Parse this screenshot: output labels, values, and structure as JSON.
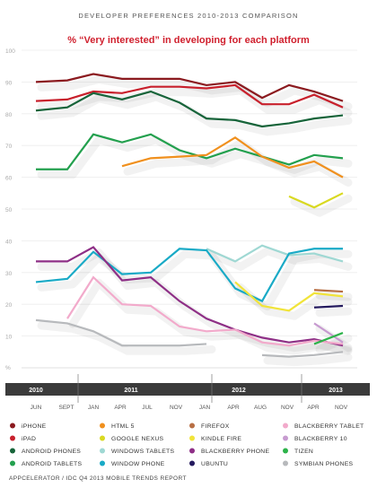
{
  "header": "DEVELOPER PREFERENCES 2010-2013 COMPARISON",
  "subtitle": "% “Very interested” in developing for each platform",
  "footer": "APPCELERATOR / IDC Q4 2013 MOBILE TRENDS REPORT",
  "chart_data": {
    "type": "line",
    "title": "% “Very interested” in developing for each platform",
    "x": [
      "JUN",
      "SEPT",
      "JAN",
      "APR",
      "JUL",
      "NOV",
      "JAN",
      "APR",
      "AUG",
      "NOV",
      "APR",
      "NOV"
    ],
    "years": [
      {
        "label": "2010",
        "from": 0,
        "to": 1
      },
      {
        "label": "2011",
        "from": 2,
        "to": 5
      },
      {
        "label": "2012",
        "from": 6,
        "to": 9
      },
      {
        "label": "2013",
        "from": 10,
        "to": 11
      }
    ],
    "ylim": [
      0,
      100
    ],
    "yticks": [
      10,
      20,
      30,
      40,
      50,
      60,
      70,
      80,
      90,
      100
    ],
    "ytick_suffix": "%",
    "grid": true,
    "series": [
      {
        "name": "iPHONE",
        "color": "#8b1a1f",
        "values": [
          90,
          90.5,
          92.5,
          91,
          91,
          91,
          89,
          90,
          85,
          89,
          87,
          84
        ]
      },
      {
        "name": "iPAD",
        "color": "#c8202c",
        "values": [
          84,
          84.5,
          87,
          86.5,
          88.5,
          88.5,
          88,
          89,
          83,
          83,
          86,
          82
        ]
      },
      {
        "name": "ANDROID PHONES",
        "color": "#17643a",
        "values": [
          81,
          82,
          86.5,
          84.5,
          87,
          83.5,
          78.5,
          78,
          76,
          77,
          78.5,
          79.5
        ]
      },
      {
        "name": "ANDROID TABLETS",
        "color": "#23a04e",
        "values": [
          62.5,
          62.5,
          73.5,
          71,
          73.5,
          68.5,
          66,
          69,
          66.5,
          64,
          67,
          66
        ]
      },
      {
        "name": "HTML 5",
        "color": "#f0901e",
        "values": [
          null,
          null,
          null,
          63.5,
          66,
          66.5,
          67,
          72.5,
          66.5,
          63,
          65,
          60
        ]
      },
      {
        "name": "GOOGLE NEXUS",
        "color": "#d9d921",
        "values": [
          null,
          null,
          null,
          null,
          null,
          null,
          null,
          null,
          null,
          54,
          50.5,
          55
        ]
      },
      {
        "name": "WINDOWS TABLETS",
        "color": "#9fd8d3",
        "values": [
          null,
          null,
          null,
          null,
          null,
          null,
          37.5,
          33.5,
          38.5,
          35.5,
          36,
          33.5
        ]
      },
      {
        "name": "WINDOW PHONE",
        "color": "#19aac6",
        "values": [
          27,
          28,
          36.5,
          29.5,
          30,
          37.5,
          37,
          25,
          21,
          36,
          37.5,
          37.5
        ]
      },
      {
        "name": "FIREFOX",
        "color": "#b86f44",
        "values": [
          null,
          null,
          null,
          null,
          null,
          null,
          null,
          null,
          null,
          null,
          24.5,
          24
        ]
      },
      {
        "name": "KINDLE FIRE",
        "color": "#f1e43a",
        "values": [
          null,
          null,
          null,
          null,
          null,
          null,
          null,
          27,
          19.5,
          18,
          23.5,
          22.5
        ]
      },
      {
        "name": "BLACKBERRY PHONE",
        "color": "#8e2f86",
        "values": [
          33.5,
          33.5,
          38,
          27.5,
          28.5,
          21,
          15.5,
          12,
          9.5,
          8,
          9,
          7
        ]
      },
      {
        "name": "UBUNTU",
        "color": "#241a5e",
        "values": [
          null,
          null,
          null,
          null,
          null,
          null,
          null,
          null,
          null,
          null,
          19,
          19.5
        ]
      },
      {
        "name": "BLACKBERRY TABLET",
        "color": "#f2aacb",
        "values": [
          null,
          15.5,
          28.5,
          20,
          19.5,
          13,
          11.5,
          12,
          8,
          7,
          8.5,
          7.5
        ]
      },
      {
        "name": "BLACKBERRY 10",
        "color": "#c79bd0",
        "values": [
          null,
          null,
          null,
          null,
          null,
          null,
          null,
          null,
          null,
          null,
          14,
          8
        ]
      },
      {
        "name": "TIZEN",
        "color": "#2db34a",
        "values": [
          null,
          null,
          null,
          null,
          null,
          null,
          null,
          null,
          null,
          null,
          7.5,
          11
        ]
      },
      {
        "name": "SYMBIAN PHONES",
        "color": "#b7b9bc",
        "values": [
          15,
          14,
          11.5,
          7,
          7,
          7,
          7.5,
          null,
          4,
          3.5,
          4,
          5
        ]
      }
    ],
    "legend_order": [
      "iPHONE",
      "HTML 5",
      "FIREFOX",
      "BLACKBERRY TABLET",
      "iPAD",
      "GOOGLE NEXUS",
      "KINDLE FIRE",
      "BLACKBERRY 10",
      "ANDROID PHONES",
      "WINDOWS TABLETS",
      "BLACKBERRY PHONE",
      "TIZEN",
      "ANDROID TABLETS",
      "WINDOW PHONE",
      "UBUNTU",
      "SYMBIAN PHONES"
    ]
  }
}
